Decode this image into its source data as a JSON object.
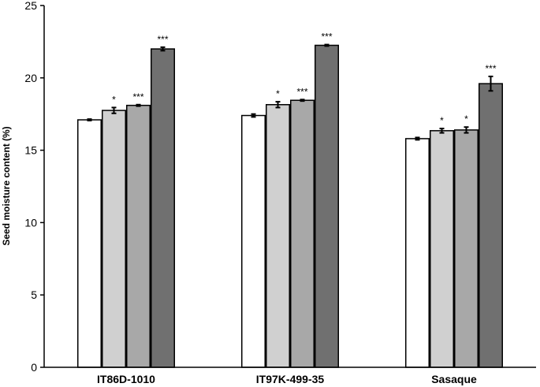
{
  "chart_data": {
    "type": "bar",
    "title": "",
    "xlabel": "",
    "ylabel": "Seed moisture content (%)",
    "ylim": [
      0,
      25
    ],
    "yticks": [
      "0",
      "5",
      "10",
      "15",
      "20",
      "25"
    ],
    "grid": false,
    "legend": "none",
    "categories": [
      "IT86D-1010",
      "IT97K-499-35",
      "Sasaque"
    ],
    "series": [
      {
        "color": "#ffffff",
        "values": [
          17.1,
          17.4,
          15.8
        ],
        "errors": [
          0.05,
          0.1,
          0.08
        ],
        "significance": [
          "",
          "",
          ""
        ]
      },
      {
        "color": "#d0d0d0",
        "values": [
          17.75,
          18.15,
          16.35
        ],
        "errors": [
          0.2,
          0.2,
          0.15
        ],
        "significance": [
          "*",
          "*",
          "*"
        ]
      },
      {
        "color": "#a8a8a8",
        "values": [
          18.1,
          18.45,
          16.4
        ],
        "errors": [
          0.05,
          0.05,
          0.2
        ],
        "significance": [
          "***",
          "***",
          "*"
        ]
      },
      {
        "color": "#707070",
        "values": [
          22.0,
          22.25,
          19.6
        ],
        "errors": [
          0.12,
          0.05,
          0.5
        ],
        "significance": [
          "***",
          "***",
          "***"
        ]
      }
    ]
  }
}
